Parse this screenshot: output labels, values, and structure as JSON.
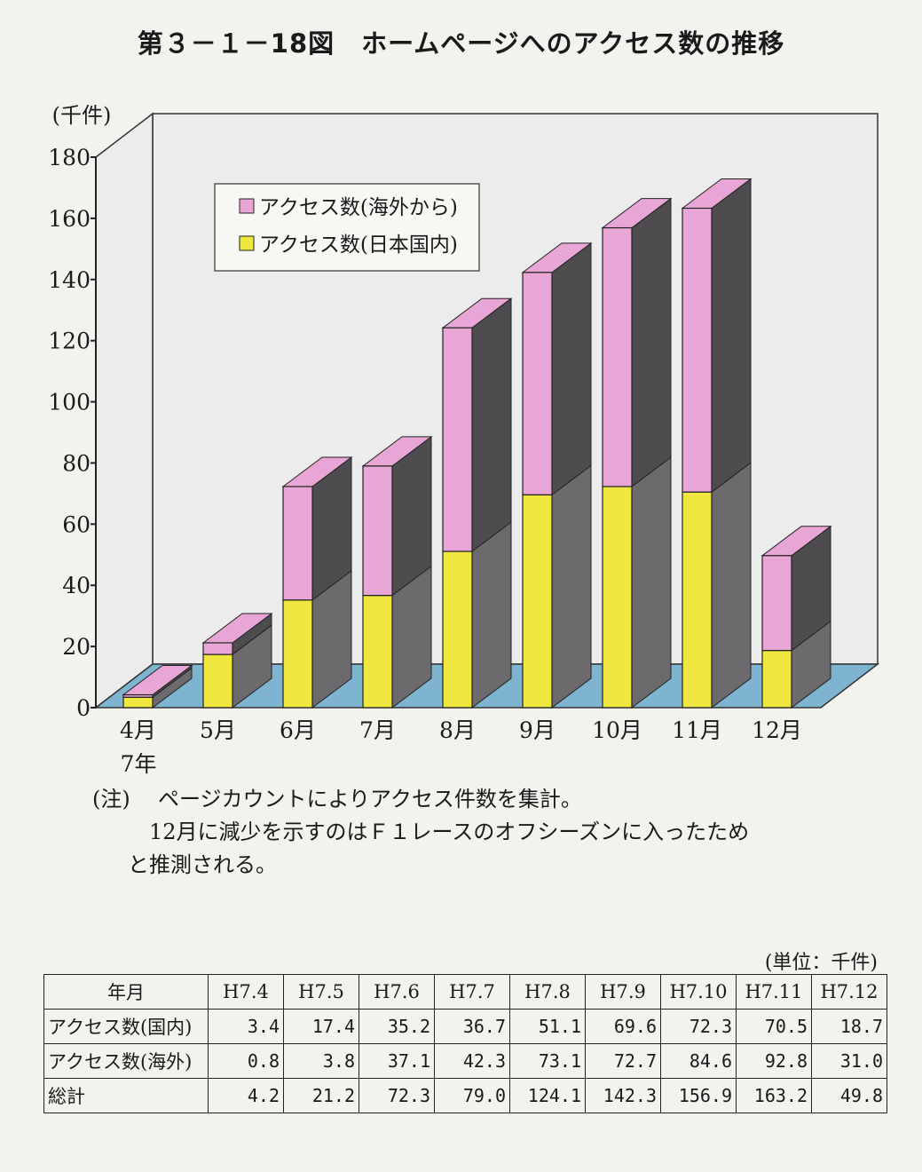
{
  "title": "第３－１－18図　ホームページへのアクセス数の推移",
  "chart_data": {
    "type": "bar",
    "stacked": true,
    "three_d": true,
    "unit_label": "(千件)",
    "ylim": [
      0,
      180
    ],
    "yticks": [
      "0",
      "20",
      "40",
      "60",
      "80",
      "100",
      "120",
      "140",
      "160",
      "180"
    ],
    "categories": [
      "4月",
      "5月",
      "6月",
      "7月",
      "8月",
      "9月",
      "10月",
      "11月",
      "12月"
    ],
    "year_label": "7年",
    "series": [
      {
        "name": "アクセス数(日本国内)",
        "color": "#f0e640",
        "values": [
          3.4,
          17.4,
          35.2,
          36.7,
          51.1,
          69.6,
          72.3,
          70.5,
          18.7
        ]
      },
      {
        "name": "アクセス数(海外から)",
        "color": "#e7a6d6",
        "values": [
          0.8,
          3.8,
          37.1,
          42.3,
          73.1,
          72.7,
          84.6,
          92.8,
          31.0
        ]
      }
    ],
    "legend_position": "top-left",
    "colors": {
      "wall": "#ececec",
      "floor": "#7eb4cf",
      "side": "#6d6a6e",
      "top_pink": "#e7a6d6",
      "yellow": "#f0e640"
    }
  },
  "notes": {
    "label": "(注)",
    "line1": "ページカウントによりアクセス件数を集計。",
    "line2": "12月に減少を示すのはＦ１レースのオフシーズンに入ったため",
    "line3": "と推測される。"
  },
  "table": {
    "unit": "(単位：千件)",
    "headers": [
      "年月",
      "H7.4",
      "H7.5",
      "H7.6",
      "H7.7",
      "H7.8",
      "H7.9",
      "H7.10",
      "H7.11",
      "H7.12"
    ],
    "rows": [
      {
        "label": "アクセス数(国内)",
        "values": [
          "3.4",
          "17.4",
          "35.2",
          "36.7",
          "51.1",
          "69.6",
          "72.3",
          "70.5",
          "18.7"
        ]
      },
      {
        "label": "アクセス数(海外)",
        "values": [
          "0.8",
          "3.8",
          "37.1",
          "42.3",
          "73.1",
          "72.7",
          "84.6",
          "92.8",
          "31.0"
        ]
      },
      {
        "label": "総計",
        "values": [
          "4.2",
          "21.2",
          "72.3",
          "79.0",
          "124.1",
          "142.3",
          "156.9",
          "163.2",
          "49.8"
        ]
      }
    ]
  }
}
